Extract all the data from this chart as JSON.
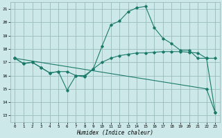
{
  "title": "",
  "xlabel": "Humidex (Indice chaleur)",
  "bg_color": "#cce8e8",
  "grid_color": "#99bbbb",
  "line_color": "#1a7a6a",
  "xlim": [
    -0.5,
    23.5
  ],
  "ylim": [
    12.5,
    21.5
  ],
  "xticks": [
    0,
    1,
    2,
    3,
    4,
    5,
    6,
    7,
    8,
    9,
    10,
    11,
    12,
    13,
    14,
    15,
    16,
    17,
    18,
    19,
    20,
    21,
    22,
    23
  ],
  "yticks": [
    13,
    14,
    15,
    16,
    17,
    18,
    19,
    20,
    21
  ],
  "line1_x": [
    0,
    1,
    2,
    3,
    4,
    5,
    6,
    7,
    8,
    9,
    10,
    11,
    12,
    13,
    14,
    15,
    16,
    17,
    18,
    19,
    20,
    21,
    22,
    23
  ],
  "line1_y": [
    17.3,
    16.9,
    17.0,
    16.6,
    16.2,
    16.3,
    16.3,
    16.0,
    16.0,
    16.5,
    17.0,
    17.3,
    17.5,
    17.6,
    17.7,
    17.7,
    17.75,
    17.8,
    17.8,
    17.8,
    17.75,
    17.7,
    17.3,
    17.3
  ],
  "line2_x": [
    0,
    1,
    2,
    3,
    4,
    5,
    6,
    7,
    8,
    9,
    10,
    11,
    12,
    13,
    14,
    15,
    16,
    17,
    18,
    19,
    20,
    21,
    22,
    23
  ],
  "line2_y": [
    17.3,
    16.9,
    17.0,
    16.6,
    16.2,
    16.3,
    14.9,
    16.0,
    15.9,
    16.5,
    18.2,
    19.8,
    20.1,
    20.8,
    21.1,
    21.2,
    19.6,
    18.8,
    18.4,
    17.9,
    17.9,
    17.3,
    17.3,
    13.2
  ],
  "line3_x": [
    0,
    22,
    23
  ],
  "line3_y": [
    17.3,
    15.0,
    13.2
  ]
}
